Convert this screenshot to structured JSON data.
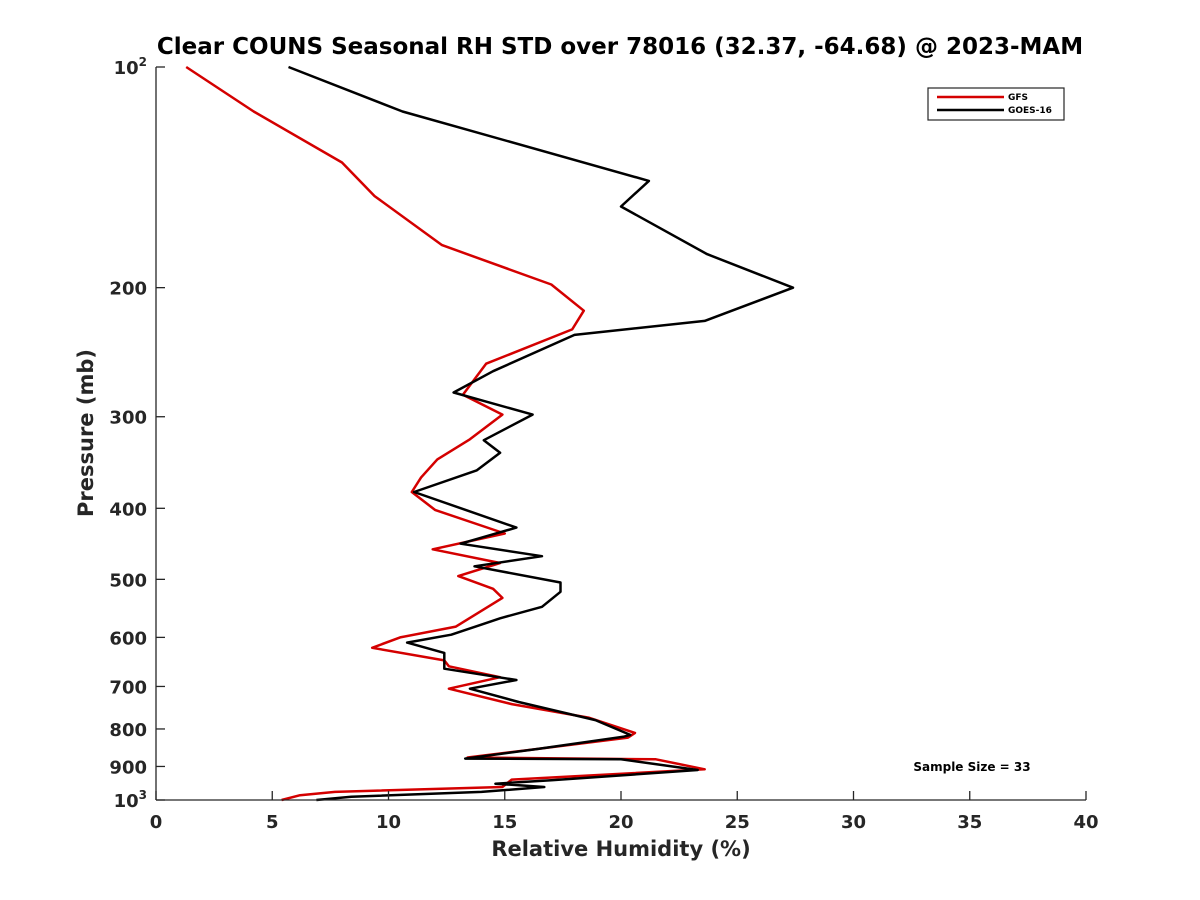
{
  "chart_data": {
    "type": "line",
    "title": "Clear COUNS Seasonal RH STD over 78016 (32.37, -64.68) @ 2023-MAM",
    "xlabel": "Relative Humidity (%)",
    "ylabel": "Pressure (mb)",
    "xlim": [
      0,
      40
    ],
    "ylim": [
      100,
      1000
    ],
    "yscale": "log",
    "yreversed": true,
    "grid": false,
    "legend_position": "top-right",
    "x_ticks": [
      "0",
      "5",
      "10",
      "15",
      "20",
      "25",
      "30",
      "35",
      "40"
    ],
    "y_ticks": [
      {
        "value": 100,
        "base": "10",
        "exp": "2"
      },
      {
        "value": 200,
        "label": "200"
      },
      {
        "value": 300,
        "label": "300"
      },
      {
        "value": 400,
        "label": "400"
      },
      {
        "value": 500,
        "label": "500"
      },
      {
        "value": 600,
        "label": "600"
      },
      {
        "value": 700,
        "label": "700"
      },
      {
        "value": 800,
        "label": "800"
      },
      {
        "value": 900,
        "label": "900"
      },
      {
        "value": 1000,
        "base": "10",
        "exp": "3"
      }
    ],
    "annotation": "Sample Size = 33",
    "series": [
      {
        "name": "GFS",
        "color": "#d40000",
        "points": [
          [
            1.3,
            100
          ],
          [
            4.2,
            115
          ],
          [
            8.0,
            135
          ],
          [
            9.4,
            150
          ],
          [
            12.3,
            175
          ],
          [
            17.0,
            198
          ],
          [
            18.4,
            215
          ],
          [
            17.9,
            228
          ],
          [
            14.2,
            254
          ],
          [
            13.2,
            280
          ],
          [
            14.9,
            298
          ],
          [
            13.5,
            322
          ],
          [
            12.1,
            343
          ],
          [
            11.4,
            363
          ],
          [
            11.0,
            380
          ],
          [
            12.0,
            402
          ],
          [
            15.0,
            433
          ],
          [
            11.9,
            455
          ],
          [
            14.8,
            475
          ],
          [
            13.0,
            495
          ],
          [
            14.5,
            515
          ],
          [
            14.9,
            530
          ],
          [
            12.9,
            580
          ],
          [
            10.5,
            600
          ],
          [
            9.3,
            620
          ],
          [
            12.4,
            645
          ],
          [
            12.6,
            657
          ],
          [
            14.8,
            680
          ],
          [
            12.6,
            705
          ],
          [
            15.3,
            740
          ],
          [
            18.6,
            772
          ],
          [
            20.6,
            810
          ],
          [
            20.3,
            822
          ],
          [
            16.0,
            855
          ],
          [
            13.4,
            875
          ],
          [
            21.5,
            880
          ],
          [
            23.6,
            908
          ],
          [
            15.3,
            938
          ],
          [
            14.9,
            960
          ],
          [
            7.7,
            975
          ],
          [
            6.2,
            985
          ],
          [
            5.4,
            1000
          ]
        ]
      },
      {
        "name": "GOES-16",
        "color": "#000000",
        "points": [
          [
            5.7,
            100
          ],
          [
            10.6,
            115
          ],
          [
            21.2,
            143
          ],
          [
            20.0,
            155
          ],
          [
            23.7,
            180
          ],
          [
            27.4,
            200
          ],
          [
            23.6,
            222
          ],
          [
            18.0,
            232
          ],
          [
            14.5,
            260
          ],
          [
            12.8,
            278
          ],
          [
            16.2,
            298
          ],
          [
            14.1,
            323
          ],
          [
            14.8,
            336
          ],
          [
            13.8,
            355
          ],
          [
            11.1,
            380
          ],
          [
            15.5,
            425
          ],
          [
            13.1,
            447
          ],
          [
            16.6,
            465
          ],
          [
            13.7,
            480
          ],
          [
            17.4,
            505
          ],
          [
            17.4,
            520
          ],
          [
            16.6,
            545
          ],
          [
            14.8,
            565
          ],
          [
            14.1,
            575
          ],
          [
            12.7,
            595
          ],
          [
            10.8,
            610
          ],
          [
            12.4,
            630
          ],
          [
            12.4,
            662
          ],
          [
            15.5,
            686
          ],
          [
            13.5,
            705
          ],
          [
            15.6,
            735
          ],
          [
            18.9,
            778
          ],
          [
            20.4,
            815
          ],
          [
            20.1,
            820
          ],
          [
            16.4,
            852
          ],
          [
            13.3,
            878
          ],
          [
            20.0,
            880
          ],
          [
            23.3,
            910
          ],
          [
            17.0,
            940
          ],
          [
            14.6,
            950
          ],
          [
            16.7,
            960
          ],
          [
            14.0,
            975
          ],
          [
            8.4,
            990
          ],
          [
            6.9,
            1000
          ]
        ]
      }
    ]
  }
}
